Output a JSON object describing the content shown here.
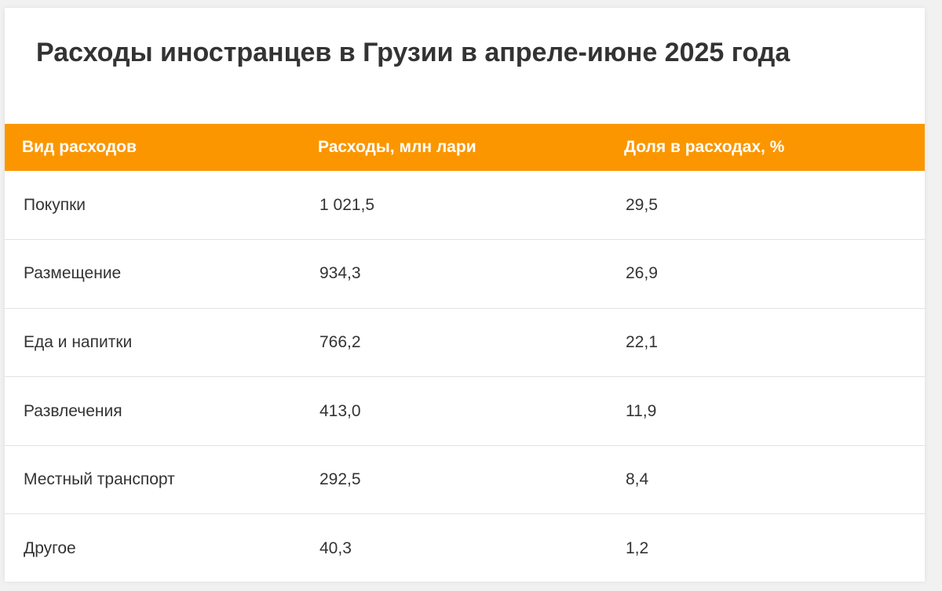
{
  "title": "Расходы иностранцев в Грузии в апреле-июне 2025 года",
  "table": {
    "headers": [
      "Вид расходов",
      "Расходы, млн лари",
      "Доля в расходах, %"
    ],
    "rows": [
      [
        "Покупки",
        "1 021,5",
        "29,5"
      ],
      [
        "Размещение",
        "934,3",
        "26,9"
      ],
      [
        "Еда и напитки",
        "766,2",
        "22,1"
      ],
      [
        "Развлечения",
        "413,0",
        "11,9"
      ],
      [
        "Местный транспорт",
        "292,5",
        "8,4"
      ],
      [
        "Другое",
        "40,3",
        "1,2"
      ]
    ]
  },
  "colors": {
    "header_background": "#fb9600",
    "header_text": "#ffffff",
    "body_text": "#333333",
    "row_divider": "#e2e2e2"
  }
}
